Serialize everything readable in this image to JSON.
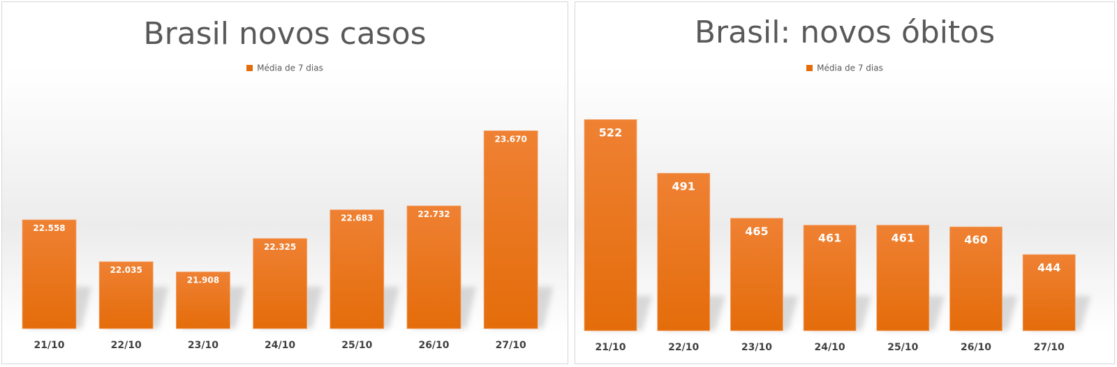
{
  "charts": [
    {
      "legend": "Média de 7 dias",
      "color": "#e46c0a",
      "chart_data": {
        "type": "bar",
        "title": "Brasil novos casos",
        "categories": [
          "21/10",
          "22/10",
          "23/10",
          "24/10",
          "25/10",
          "26/10",
          "27/10"
        ],
        "series": [
          {
            "name": "Média de 7 dias",
            "values": [
              22558,
              22035,
              21908,
              22325,
              22683,
              22732,
              23670
            ],
            "labels": [
              "22.558",
              "22.035",
              "21.908",
              "22.325",
              "22.683",
              "22.732",
              "23.670"
            ]
          }
        ],
        "ylim": [
          21200,
          23900
        ],
        "xlabel": "",
        "ylabel": "",
        "grid": false,
        "legend_position": "top-center"
      }
    },
    {
      "legend": "Média de 7 dias",
      "color": "#e46c0a",
      "chart_data": {
        "type": "bar",
        "title": "Brasil: novos óbitos",
        "categories": [
          "21/10",
          "22/10",
          "23/10",
          "24/10",
          "25/10",
          "26/10",
          "27/10"
        ],
        "series": [
          {
            "name": "Média de 7 dias",
            "values": [
              522,
              491,
              465,
              461,
              461,
              460,
              444
            ],
            "labels": [
              "522",
              "491",
              "465",
              "461",
              "461",
              "460",
              "444"
            ]
          }
        ],
        "ylim": [
          400,
          525
        ],
        "xlabel": "",
        "ylabel": "",
        "grid": false,
        "legend_position": "top-center"
      }
    }
  ]
}
